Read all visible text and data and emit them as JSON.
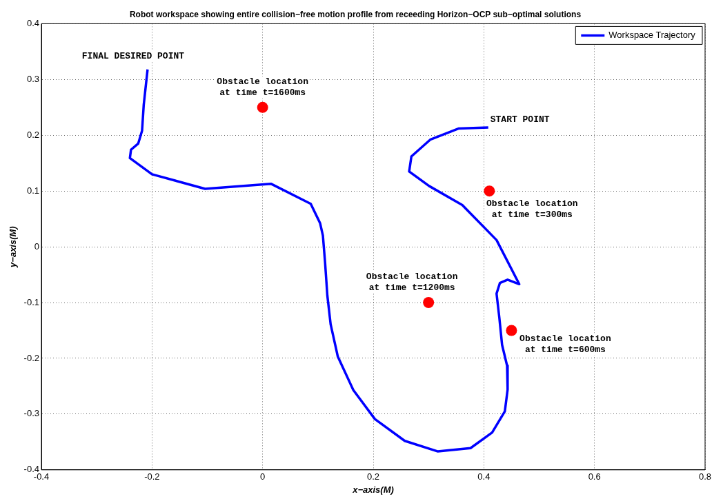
{
  "chart_data": {
    "type": "line",
    "title": "Robot workspace showing entire collision−free motion profile from receeding Horizon−OCP sub−optimal solutions",
    "xlabel": "x−axis(M)",
    "ylabel": "y−axis(M)",
    "xlim": [
      -0.4,
      0.8
    ],
    "xticks": [
      -0.4,
      -0.2,
      0,
      0.2,
      0.4,
      0.6,
      0.8
    ],
    "ylim": [
      -0.4,
      0.4
    ],
    "yticks": [
      -0.4,
      -0.3,
      -0.2,
      -0.1,
      0,
      0.1,
      0.2,
      0.3,
      0.4
    ],
    "grid": true,
    "legend": "top right",
    "series": [
      {
        "name": "Workspace Trajectory",
        "color": "#0000ff",
        "marker": "none",
        "line_style": "solid",
        "x": [
          0.408,
          0.354,
          0.303,
          0.269,
          0.265,
          0.301,
          0.361,
          0.423,
          0.464,
          0.443,
          0.429,
          0.423,
          0.428,
          0.433,
          0.442,
          0.443,
          0.438,
          0.415,
          0.376,
          0.317,
          0.257,
          0.203,
          0.164,
          0.136,
          0.123,
          0.117,
          0.113,
          0.109,
          0.104,
          0.087,
          0.015,
          -0.104,
          -0.2,
          -0.24,
          -0.238,
          -0.225,
          -0.218,
          -0.215,
          -0.208
        ],
        "values": [
          0.214,
          0.212,
          0.192,
          0.162,
          0.135,
          0.109,
          0.075,
          0.012,
          -0.067,
          -0.059,
          -0.065,
          -0.084,
          -0.127,
          -0.176,
          -0.213,
          -0.256,
          -0.295,
          -0.333,
          -0.361,
          -0.367,
          -0.348,
          -0.309,
          -0.257,
          -0.197,
          -0.139,
          -0.087,
          -0.029,
          0.02,
          0.042,
          0.077,
          0.113,
          0.104,
          0.13,
          0.159,
          0.174,
          0.185,
          0.208,
          0.254,
          0.318
        ]
      },
      {
        "type": "scatter",
        "color": "#ff0000",
        "marker": "circle",
        "x": [
          0.41,
          0.45,
          0.3,
          0
        ],
        "values": [
          0.1,
          -0.15,
          -0.1,
          0.25
        ]
      }
    ],
    "annotations": [
      {
        "text": "START POINT",
        "x": 0.408,
        "y": 0.214
      },
      {
        "text": "FINAL DESIRED POINT",
        "x": -0.208,
        "y": 0.318
      },
      {
        "text": "Obstacle location\nat time t=1600ms",
        "x": 0,
        "y": 0.25
      },
      {
        "text": "Obstacle location\nat time t=300ms",
        "x": 0.41,
        "y": 0.1
      },
      {
        "text": "Obstacle location\nat time t=1200ms",
        "x": 0.3,
        "y": -0.1
      },
      {
        "text": "Obstacle location\nat time t=600ms",
        "x": 0.45,
        "y": -0.15
      }
    ]
  }
}
